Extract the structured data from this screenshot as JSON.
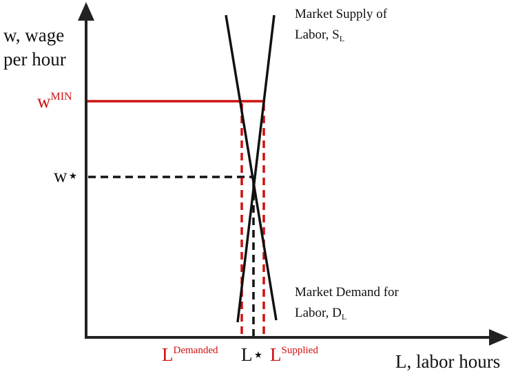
{
  "axes": {
    "y_label": [
      "w, wage",
      "per hour"
    ],
    "x_label": "L, labor hours"
  },
  "price_labels": {
    "w_min": {
      "base": "w",
      "sup": "MIN"
    },
    "w_star": "w⋆"
  },
  "curves": {
    "supply": {
      "line1": "Market Supply of",
      "line2": "Labor, S",
      "sub": "L"
    },
    "demand": {
      "line1": "Market Demand for",
      "line2": "Labor, D",
      "sub": "L"
    }
  },
  "quantity_labels": {
    "demanded": {
      "base": "L",
      "sup": "Demanded"
    },
    "star": "L⋆",
    "supplied": {
      "base": "L",
      "sup": "Supplied"
    }
  }
}
